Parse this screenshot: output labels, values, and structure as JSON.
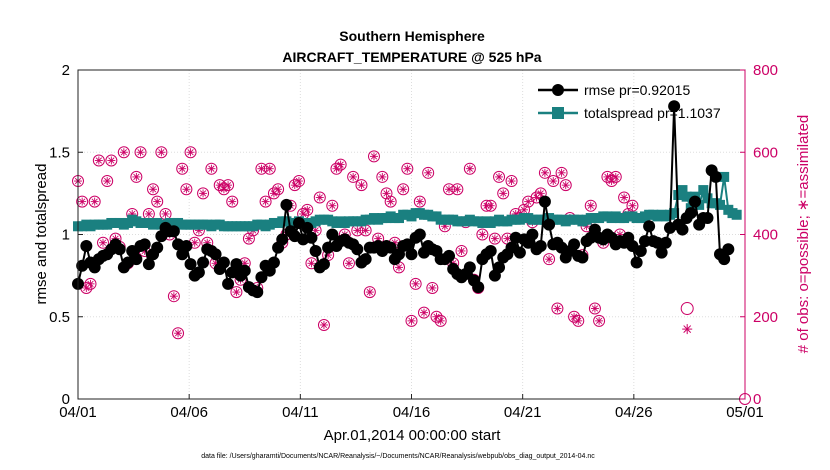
{
  "chart_data": {
    "type": "line",
    "title": "Southern Hemisphere",
    "subtitle": "AIRCRAFT_TEMPERATURE @ 525 hPa",
    "xlabel": "Apr.01,2014 00:00:00 start",
    "ylabel_left": "rmse and totalspread",
    "ylabel_right": "# of obs: o=possible; ∗=assimilated",
    "footnote": "data file: /Users/gharamti/Documents/NCAR/Reanalysis/~/Documents/NCAR/Reanalysis/webpub/obs_diag_output_2014-04.nc",
    "x_tick_labels": [
      "04/01",
      "04/06",
      "04/11",
      "04/16",
      "04/21",
      "04/26",
      "05/01"
    ],
    "x_tick_days": [
      0,
      5,
      10,
      15,
      20,
      25,
      30
    ],
    "xlim": [
      0,
      30
    ],
    "ylim_left": [
      0,
      2
    ],
    "y_left_ticks": [
      "0",
      "0.5",
      "1",
      "1.5",
      "2"
    ],
    "ylim_right": [
      0,
      800
    ],
    "y_right_ticks": [
      "0",
      "200",
      "400",
      "600",
      "800"
    ],
    "grid": true,
    "legend_position": "top-right",
    "colors": {
      "rmse": "#000000",
      "totalspread": "#1a8080",
      "obs": "#cc0066"
    },
    "series": [
      {
        "name": "rmse pr=0.92015",
        "axis": "left",
        "values": [
          0.7,
          0.81,
          0.93,
          0.83,
          0.8,
          0.85,
          0.87,
          0.88,
          0.91,
          0.94,
          0.91,
          0.8,
          0.83,
          0.9,
          0.85,
          0.93,
          0.94,
          0.82,
          0.88,
          0.92,
          0.99,
          1.04,
          1.02,
          1.02,
          0.94,
          0.88,
          0.93,
          0.82,
          0.75,
          0.77,
          0.83,
          0.91,
          0.9,
          0.88,
          0.79,
          0.83,
          0.7,
          0.77,
          0.82,
          0.75,
          0.78,
          0.68,
          0.66,
          0.65,
          0.74,
          0.81,
          0.78,
          0.83,
          0.92,
          0.97,
          1.18,
          1.02,
          0.99,
          1.07,
          0.97,
          1.04,
          0.98,
          0.9,
          0.8,
          0.82,
          0.92,
          1.0,
          0.93,
          0.96,
          0.97,
          0.95,
          0.94,
          0.91,
          0.83,
          0.85,
          0.92,
          0.92,
          0.93,
          0.9,
          0.93,
          0.92,
          0.85,
          0.88,
          0.93,
          0.94,
          0.88,
          0.98,
          1.0,
          0.89,
          0.93,
          0.91,
          0.9,
          0.85,
          0.85,
          0.87,
          0.79,
          0.76,
          0.74,
          0.76,
          0.8,
          0.72,
          0.68,
          0.85,
          0.88,
          0.9,
          0.75,
          0.8,
          0.86,
          0.88,
          0.92,
          0.98,
          0.89,
          0.97,
          0.95,
          1.0,
          0.91,
          0.93,
          1.2,
          1.06,
          0.94,
          0.95,
          0.92,
          0.86,
          0.9,
          0.94,
          0.87,
          0.86,
          0.96,
          0.98,
          1.03,
          0.98,
          0.97,
          1.0,
          0.98,
          0.94,
          0.96,
          0.95,
          0.98,
          0.93,
          0.83,
          0.9,
          0.96,
          1.05,
          0.96,
          0.95,
          0.89,
          0.95,
          1.04,
          1.78,
          1.06,
          1.03,
          1.1,
          1.13,
          1.2,
          1.06,
          1.1,
          1.1,
          1.39,
          1.35,
          0.88,
          0.85,
          0.91
        ],
        "x_start_day": 0,
        "x_step_day": 0.1875
      },
      {
        "name": "totalspread pr=1.1037",
        "axis": "left",
        "values": [
          1.05,
          1.05,
          1.06,
          1.05,
          1.06,
          1.06,
          1.06,
          1.06,
          1.07,
          1.07,
          1.07,
          1.06,
          1.07,
          1.09,
          1.08,
          1.07,
          1.07,
          1.07,
          1.06,
          1.07,
          1.06,
          1.06,
          1.07,
          1.07,
          1.07,
          1.06,
          1.06,
          1.06,
          1.06,
          1.06,
          1.06,
          1.06,
          1.05,
          1.06,
          1.06,
          1.05,
          1.05,
          1.05,
          1.05,
          1.05,
          1.05,
          1.05,
          1.05,
          1.06,
          1.06,
          1.05,
          1.06,
          1.07,
          1.07,
          1.08,
          1.08,
          1.07,
          1.07,
          1.08,
          1.07,
          1.07,
          1.07,
          1.08,
          1.09,
          1.09,
          1.09,
          1.08,
          1.07,
          1.08,
          1.07,
          1.08,
          1.08,
          1.08,
          1.08,
          1.09,
          1.09,
          1.1,
          1.09,
          1.1,
          1.1,
          1.11,
          1.1,
          1.1,
          1.12,
          1.12,
          1.11,
          1.13,
          1.13,
          1.12,
          1.12,
          1.11,
          1.11,
          1.09,
          1.09,
          1.09,
          1.09,
          1.08,
          1.08,
          1.08,
          1.09,
          1.08,
          1.08,
          1.07,
          1.08,
          1.07,
          1.08,
          1.09,
          1.08,
          1.08,
          1.09,
          1.09,
          1.09,
          1.1,
          1.1,
          1.09,
          1.09,
          1.09,
          1.09,
          1.1,
          1.09,
          1.09,
          1.09,
          1.08,
          1.09,
          1.09,
          1.09,
          1.08,
          1.09,
          1.1,
          1.1,
          1.1,
          1.11,
          1.11,
          1.1,
          1.11,
          1.1,
          1.1,
          1.11,
          1.11,
          1.1,
          1.1,
          1.11,
          1.12,
          1.12,
          1.11,
          1.12,
          1.11,
          1.12,
          1.13,
          1.24,
          1.27,
          1.23,
          1.16,
          1.23,
          1.18,
          1.27,
          1.22,
          1.19,
          1.19,
          1.18,
          1.35,
          1.15,
          1.13,
          1.12
        ],
        "x_start_day": 0,
        "x_step_day": 0.1875
      },
      {
        "name": "obs possible",
        "axis": "right",
        "marker": "o",
        "values": [
          530,
          480,
          270,
          280,
          480,
          580,
          380,
          530,
          580,
          390,
          370,
          600,
          330,
          450,
          540,
          600,
          360,
          450,
          510,
          480,
          600,
          450,
          400,
          250,
          160,
          560,
          510,
          600,
          380,
          410,
          500,
          380,
          560,
          330,
          520,
          510,
          520,
          480,
          260,
          290,
          330,
          390,
          410,
          270,
          560,
          480,
          560,
          500,
          510,
          380,
          400,
          470,
          520,
          530,
          450,
          460,
          330,
          410,
          490,
          180,
          350,
          470,
          560,
          570,
          400,
          330,
          540,
          410,
          520,
          410,
          260,
          590,
          390,
          540,
          500,
          480,
          380,
          320,
          510,
          560,
          190,
          280,
          480,
          210,
          550,
          270,
          200,
          190,
          420,
          510,
          330,
          510,
          360,
          430,
          560,
          290,
          270,
          400,
          470,
          470,
          390,
          540,
          500,
          390,
          530,
          450,
          440,
          460,
          480,
          430,
          490,
          500,
          550,
          340,
          530,
          220,
          550,
          520,
          440,
          200,
          190,
          350,
          420,
          470,
          220,
          190,
          380,
          540,
          530,
          540,
          400,
          490,
          450,
          470
        ],
        "x_start_day": 0,
        "x_step_day": 0.1875
      }
    ],
    "obs_assimilated_extra": [
      {
        "day": 27.4,
        "value": 170
      }
    ]
  }
}
